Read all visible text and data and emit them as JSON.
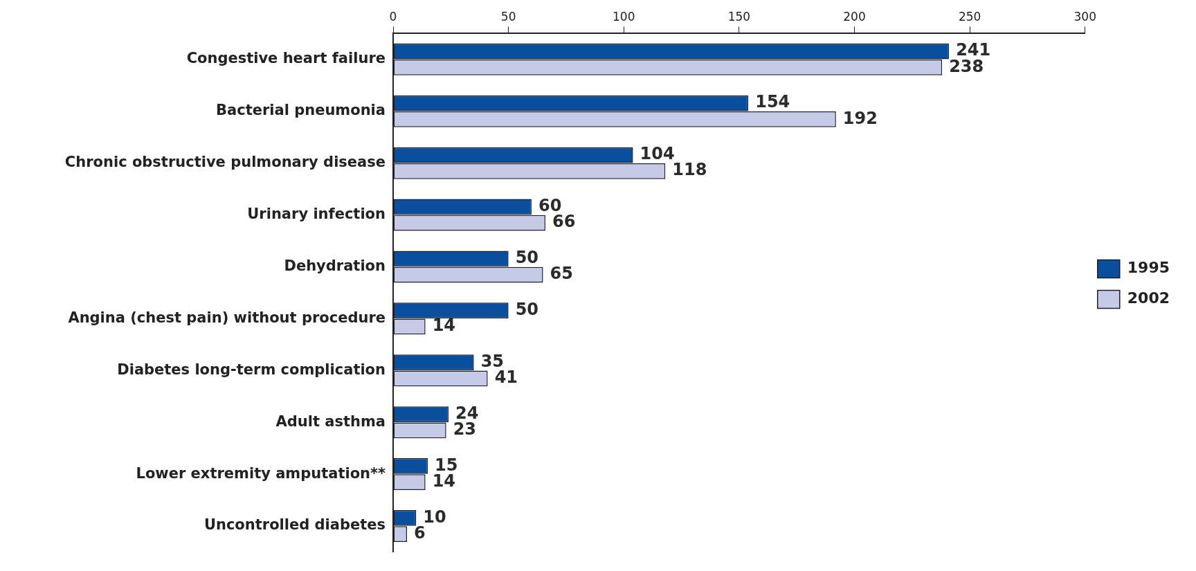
{
  "chart_data": {
    "type": "bar",
    "orientation": "horizontal",
    "categories": [
      "Congestive heart failure",
      "Bacterial pneumonia",
      "Chronic obstructive pulmonary disease",
      "Urinary infection",
      "Dehydration",
      "Angina (chest pain) without procedure",
      "Diabetes long-term complication",
      "Adult asthma",
      "Lower extremity amputation**",
      "Uncontrolled diabetes"
    ],
    "series": [
      {
        "name": "1995",
        "color": "#0a4f9e",
        "values": [
          241,
          154,
          104,
          60,
          50,
          50,
          35,
          24,
          15,
          10
        ]
      },
      {
        "name": "2002",
        "color": "#c5cbe6",
        "values": [
          238,
          192,
          118,
          66,
          65,
          14,
          41,
          23,
          14,
          6
        ]
      }
    ],
    "xlim": [
      0,
      300
    ],
    "xticks": [
      0,
      50,
      100,
      150,
      200,
      250,
      300
    ],
    "grid": false,
    "legend": "right",
    "data_labels": true
  }
}
